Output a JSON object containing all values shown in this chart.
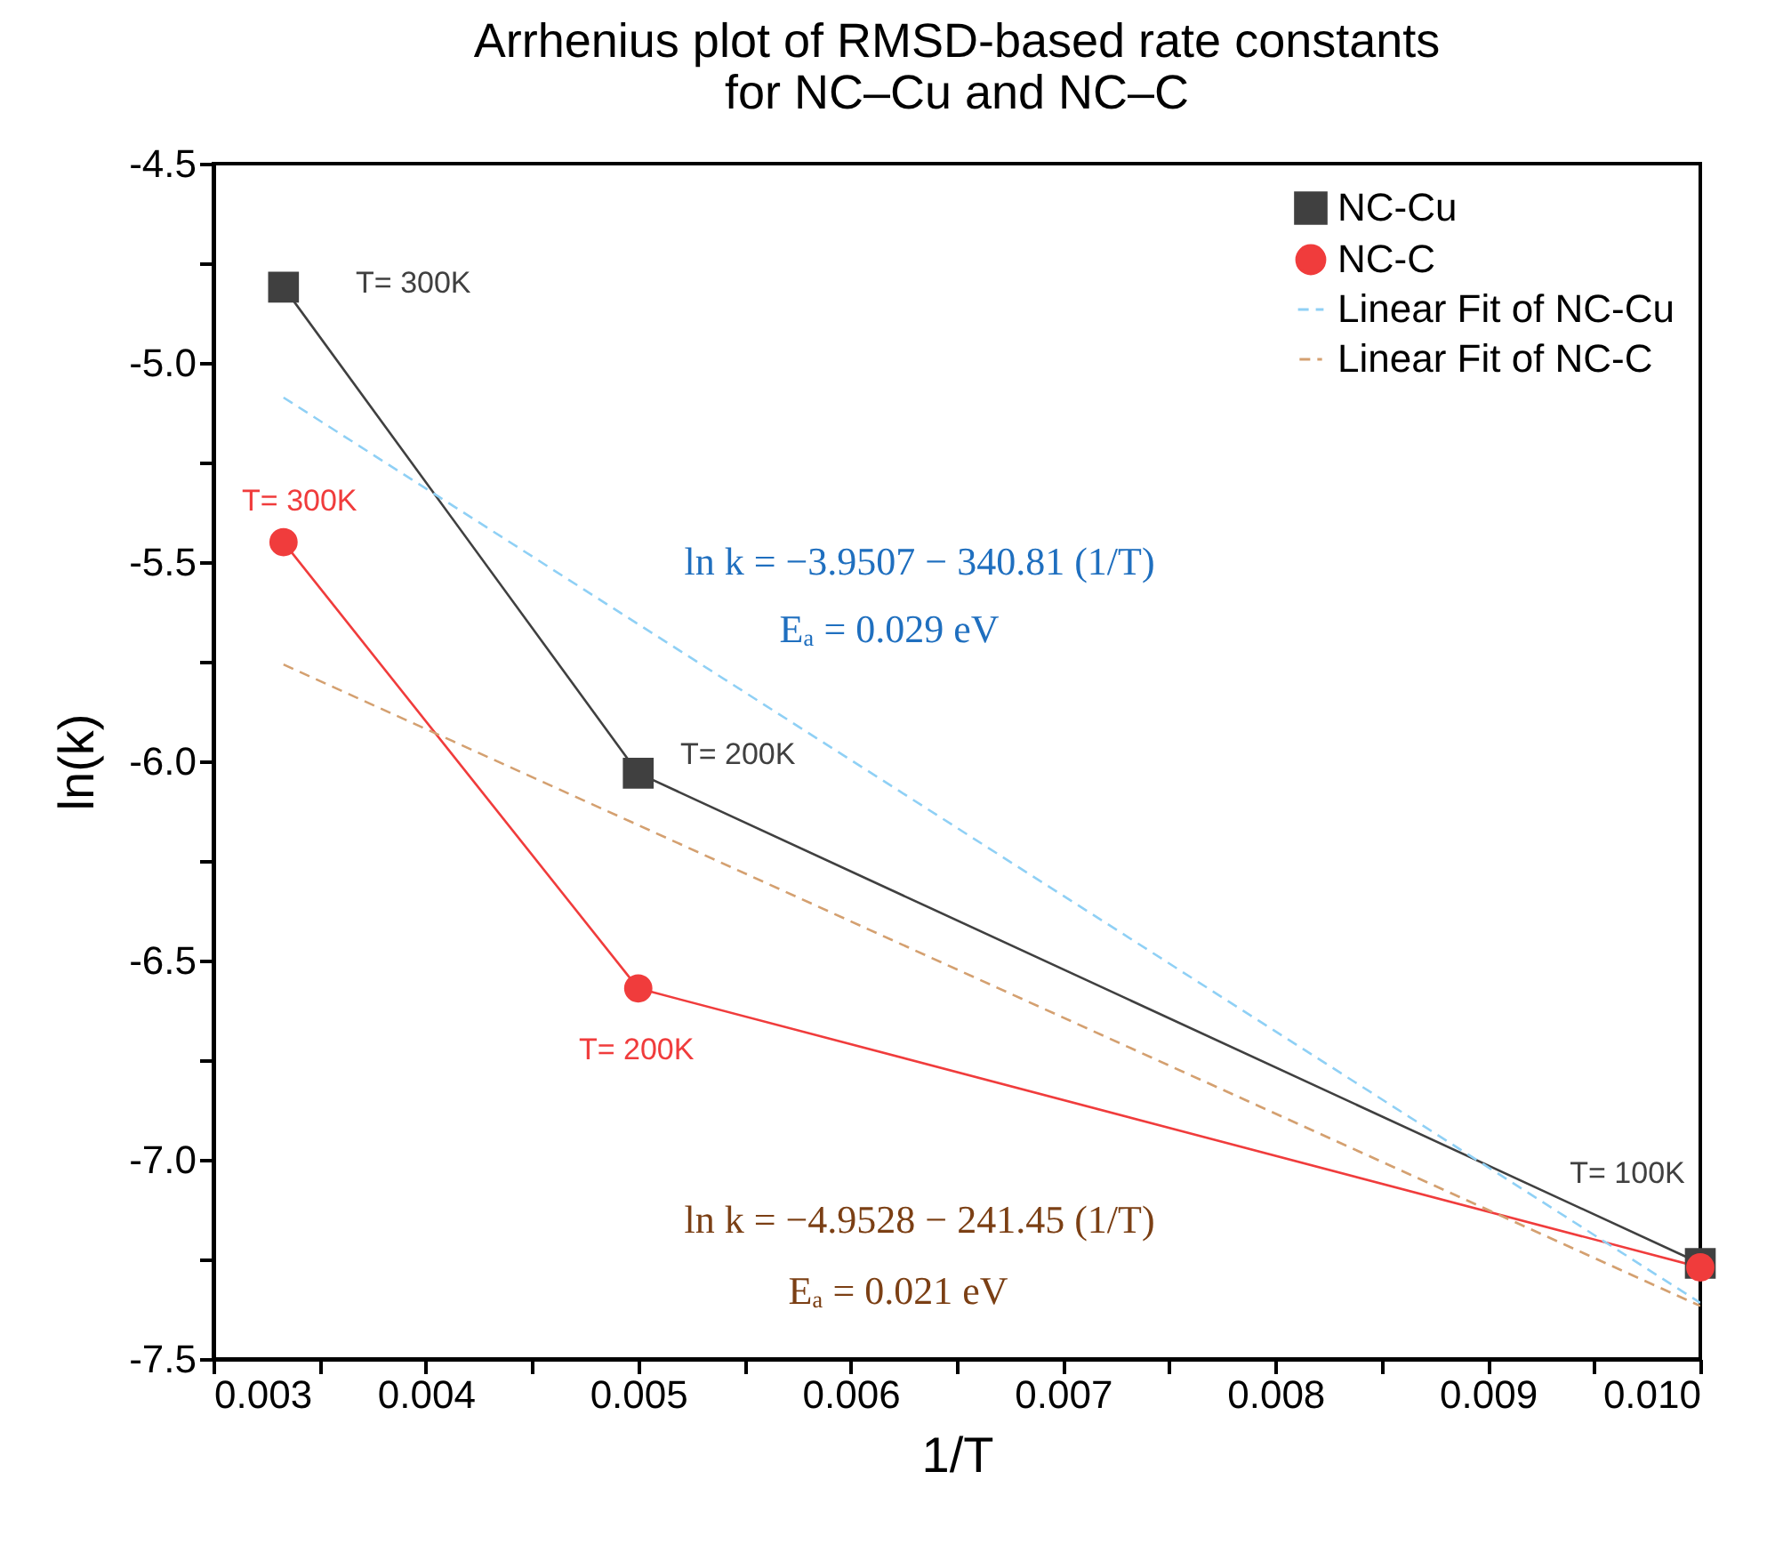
{
  "chart_data": {
    "type": "line",
    "title": "Arrhenius plot of RMSD-based rate constants\nfor NC–Cu and NC–C",
    "xlabel": "1/T",
    "ylabel": "ln(k)",
    "xlim": [
      0.003,
      0.01
    ],
    "ylim": [
      -7.5,
      -4.5
    ],
    "xticks": [
      {
        "value": 0.003,
        "label": "0.003"
      },
      {
        "value": 0.0035,
        "label": null
      },
      {
        "value": 0.004,
        "label": "0.004"
      },
      {
        "value": 0.0045,
        "label": null
      },
      {
        "value": 0.005,
        "label": "0.005"
      },
      {
        "value": 0.0055,
        "label": null
      },
      {
        "value": 0.006,
        "label": "0.006"
      },
      {
        "value": 0.0065,
        "label": null
      },
      {
        "value": 0.007,
        "label": "0.007"
      },
      {
        "value": 0.0075,
        "label": null
      },
      {
        "value": 0.008,
        "label": "0.008"
      },
      {
        "value": 0.0085,
        "label": null
      },
      {
        "value": 0.009,
        "label": "0.009"
      },
      {
        "value": 0.0095,
        "label": null
      },
      {
        "value": 0.01,
        "label": "0.010"
      }
    ],
    "yticks": [
      {
        "value": -7.5,
        "label": "-7.5"
      },
      {
        "value": -7.25,
        "label": null
      },
      {
        "value": -7,
        "label": "-7.0"
      },
      {
        "value": -6.75,
        "label": null
      },
      {
        "value": -6.5,
        "label": "-6.5"
      },
      {
        "value": -6.25,
        "label": null
      },
      {
        "value": -6,
        "label": "-6.0"
      },
      {
        "value": -5.75,
        "label": null
      },
      {
        "value": -5.5,
        "label": "-5.5"
      },
      {
        "value": -5.25,
        "label": null
      },
      {
        "value": -5,
        "label": "-5.0"
      },
      {
        "value": -4.75,
        "label": null
      },
      {
        "value": -4.5,
        "label": "-4.5"
      }
    ],
    "grid": false,
    "legend": "top right",
    "series": [
      {
        "name": "NC-Cu",
        "color": "#404040",
        "x": [
          0.00333,
          0.005,
          0.01
        ],
        "values": [
          -4.81,
          -6.03,
          -7.26
        ],
        "marker": "square",
        "line_style": "solid"
      },
      {
        "name": "NC-C",
        "color": "#f03c3c",
        "x": [
          0.00333,
          0.005,
          0.01
        ],
        "values": [
          -5.45,
          -6.57,
          -7.27
        ],
        "marker": "circle",
        "line_style": "solid"
      },
      {
        "name": "Linear Fit of NC-Cu",
        "color": "#8fd0f5",
        "x": [
          0.00333,
          0.01
        ],
        "values": [
          -5.087,
          -7.359
        ],
        "marker": "none",
        "line_style": "dashed"
      },
      {
        "name": "Linear Fit of NC-C",
        "color": "#d4a070",
        "x": [
          0.00333,
          0.01
        ],
        "values": [
          -5.757,
          -7.367
        ],
        "marker": "none",
        "line_style": "dashed"
      }
    ],
    "annotations": [
      {
        "text": "T= 300K",
        "x": 0.00333,
        "y": -4.81
      },
      {
        "text": "T= 300K",
        "x": 0.00333,
        "y": -5.45
      },
      {
        "text": "T= 200K",
        "x": 0.005,
        "y": -6.03
      },
      {
        "text": "T= 200K",
        "x": 0.005,
        "y": -6.57
      },
      {
        "text": "T= 100K",
        "x": 0.01,
        "y": -7.26
      },
      "ln k = −3.9507 − 340.81 (1/T)",
      "Eₐ = 0.029 eV",
      "ln k = −4.9528 − 241.45 (1/T)",
      "Eₐ = 0.021 eV"
    ]
  }
}
